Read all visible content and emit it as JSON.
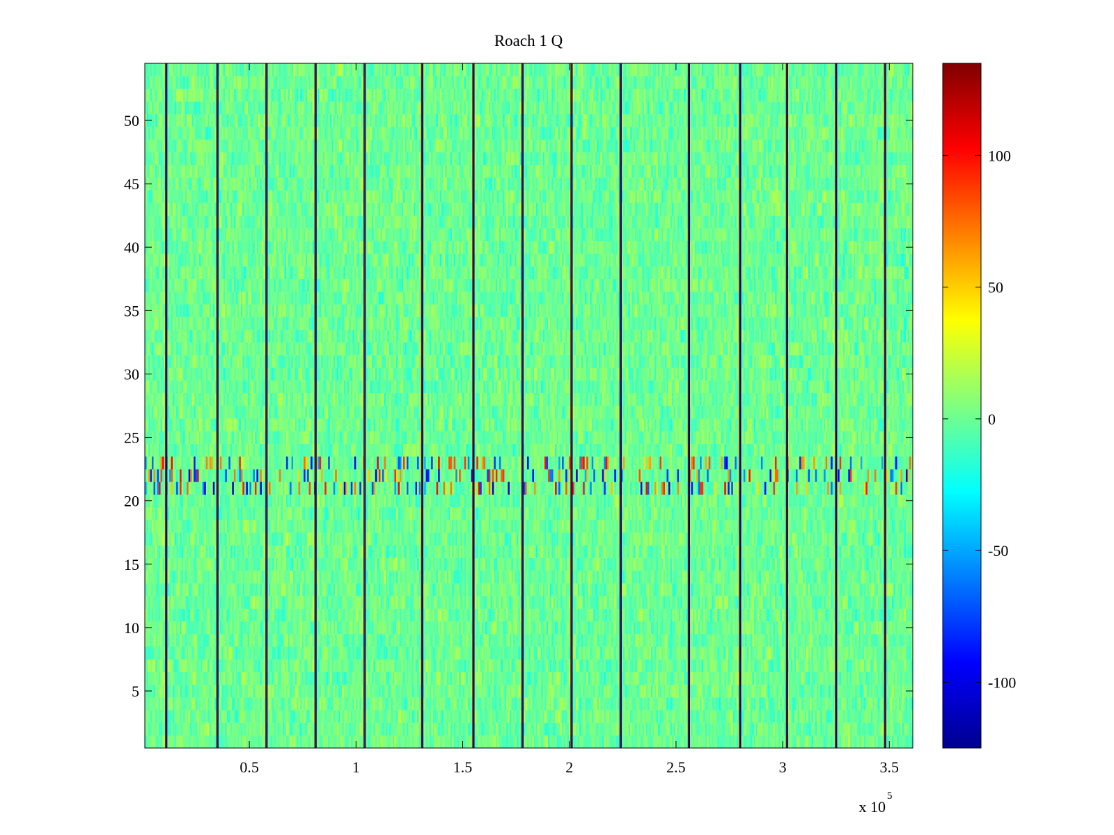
{
  "chart_data": {
    "type": "heatmap",
    "title": "Roach 1 Q",
    "xlabel": "",
    "ylabel": "",
    "x_multiplier_label": "x 10",
    "x_multiplier_exponent": "5",
    "x_range": [
      1000,
      361000
    ],
    "y_range": [
      0.5,
      54.5
    ],
    "x_ticks": [
      {
        "value": 50000,
        "label": "0.5"
      },
      {
        "value": 100000,
        "label": "1"
      },
      {
        "value": 150000,
        "label": "1.5"
      },
      {
        "value": 200000,
        "label": "2"
      },
      {
        "value": 250000,
        "label": "2.5"
      },
      {
        "value": 300000,
        "label": "3"
      },
      {
        "value": 350000,
        "label": "3.5"
      }
    ],
    "y_ticks": [
      {
        "value": 5,
        "label": "5"
      },
      {
        "value": 10,
        "label": "10"
      },
      {
        "value": 15,
        "label": "15"
      },
      {
        "value": 20,
        "label": "20"
      },
      {
        "value": 25,
        "label": "25"
      },
      {
        "value": 30,
        "label": "30"
      },
      {
        "value": 35,
        "label": "35"
      },
      {
        "value": 40,
        "label": "40"
      },
      {
        "value": 45,
        "label": "45"
      },
      {
        "value": 50,
        "label": "50"
      }
    ],
    "colorbar": {
      "colormap": "jet",
      "range": [
        -125,
        135
      ],
      "ticks": [
        {
          "value": 100,
          "label": "100"
        },
        {
          "value": 50,
          "label": "50"
        },
        {
          "value": 0,
          "label": "0"
        },
        {
          "value": -50,
          "label": "-50"
        },
        {
          "value": -100,
          "label": "-100"
        }
      ]
    },
    "background_level": 0,
    "noise_amplitude": 18,
    "disturbed_rows": {
      "from": 21,
      "to": 23,
      "amplitude": 75
    },
    "vertical_stripes_x": [
      11000,
      35000,
      58000,
      81000,
      104000,
      131000,
      155000,
      178000,
      201000,
      224000,
      256000,
      280000,
      302000,
      325000,
      348000
    ],
    "stripe_levels": [
      135,
      -125
    ]
  }
}
